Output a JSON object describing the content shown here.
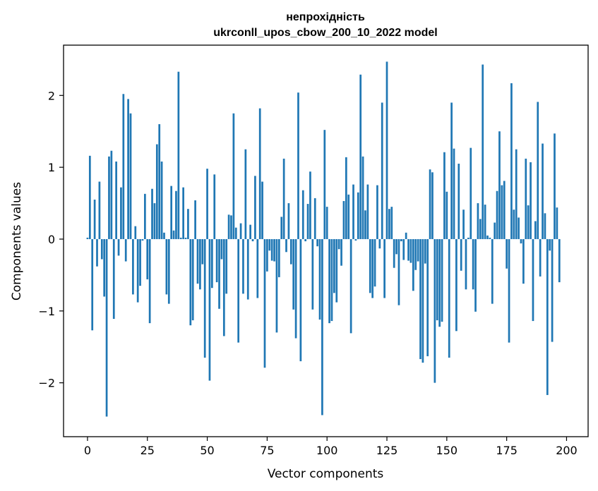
{
  "chart_data": {
    "type": "bar",
    "title_line1": "непрохідність",
    "title_line2": "ukrconll_upos_cbow_200_10_2022 model",
    "xlabel": "Vector components",
    "ylabel": "Components values",
    "xlim": [
      -10,
      209
    ],
    "ylim": [
      -2.75,
      2.7
    ],
    "xticks": [
      0,
      25,
      50,
      75,
      100,
      125,
      150,
      175,
      200
    ],
    "yticks": [
      -2,
      -1,
      0,
      1,
      2
    ],
    "ytick_labels": [
      "−2",
      "−1",
      "0",
      "1",
      "2"
    ],
    "bar_color": "#1f77b4",
    "grid": false,
    "values": [
      0.02,
      1.16,
      -1.27,
      0.55,
      -0.38,
      0.8,
      -0.28,
      -0.8,
      -2.47,
      1.15,
      1.23,
      -1.11,
      1.08,
      -0.23,
      0.72,
      2.02,
      -0.31,
      1.95,
      1.75,
      -0.77,
      0.18,
      -0.88,
      -0.65,
      -0.02,
      0.63,
      -0.56,
      -1.17,
      0.7,
      0.5,
      1.32,
      1.6,
      1.08,
      0.09,
      -0.77,
      -0.9,
      0.74,
      0.12,
      0.67,
      2.33,
      0.02,
      0.72,
      0.02,
      0.42,
      -1.2,
      -1.13,
      0.54,
      -0.62,
      -0.7,
      -0.35,
      -1.65,
      0.98,
      -1.97,
      -0.68,
      0.9,
      -0.6,
      -0.97,
      -0.28,
      -1.35,
      -0.76,
      0.34,
      0.33,
      1.75,
      0.16,
      -1.44,
      0.22,
      -0.76,
      1.25,
      -0.84,
      0.2,
      -0.03,
      0.88,
      -0.82,
      1.82,
      0.8,
      -1.79,
      -0.45,
      -0.16,
      -0.3,
      -0.31,
      -1.3,
      -0.53,
      0.31,
      1.12,
      -0.18,
      0.5,
      -0.35,
      -0.98,
      -1.38,
      2.04,
      -1.7,
      0.68,
      -0.03,
      0.49,
      0.94,
      -0.98,
      0.57,
      -0.1,
      -1.12,
      -2.45,
      1.52,
      0.45,
      -1.17,
      -1.14,
      -0.75,
      -0.88,
      -0.14,
      -0.37,
      0.53,
      1.14,
      0.62,
      -1.31,
      0.76,
      -0.02,
      0.65,
      2.29,
      1.15,
      0.4,
      0.76,
      -0.75,
      -0.82,
      -0.66,
      0.75,
      -0.13,
      1.9,
      -0.82,
      2.47,
      0.42,
      0.45,
      -0.4,
      -0.21,
      -0.92,
      -0.03,
      -0.29,
      0.09,
      -0.3,
      -0.33,
      -0.72,
      -0.43,
      -0.31,
      -1.67,
      -1.72,
      -0.34,
      -1.63,
      0.97,
      0.93,
      -2.0,
      -1.13,
      -1.22,
      -1.15,
      1.21,
      0.66,
      -1.65,
      1.9,
      1.26,
      -1.28,
      1.05,
      -0.44,
      0.41,
      -0.7,
      0.02,
      1.27,
      -0.7,
      -1.01,
      0.5,
      0.28,
      2.43,
      0.48,
      0.05,
      0.02,
      -0.9,
      0.23,
      0.67,
      1.5,
      0.75,
      0.81,
      -0.41,
      -1.44,
      2.17,
      0.41,
      1.25,
      0.3,
      -0.06,
      -0.62,
      1.12,
      0.47,
      1.07,
      -1.14,
      0.25,
      1.91,
      -0.52,
      1.33,
      0.36,
      -2.17,
      -0.16,
      -1.43,
      1.47,
      0.44,
      -0.6
    ]
  }
}
